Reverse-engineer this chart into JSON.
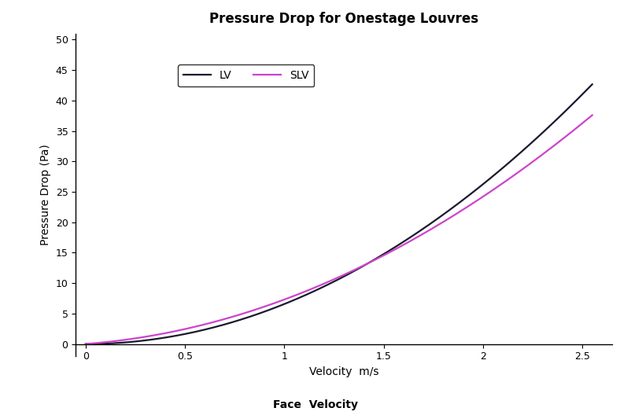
{
  "title": "Pressure Drop for Onestage Louvres",
  "xlabel": "Velocity  m/s",
  "xlabel2": "Face  Velocity",
  "ylabel": "Pressure Drop (Pa)",
  "xlim": [
    -0.05,
    2.65
  ],
  "ylim": [
    -2,
    51
  ],
  "yticks": [
    0,
    5,
    10,
    15,
    20,
    25,
    30,
    35,
    40,
    45,
    50
  ],
  "xticks": [
    0,
    0.5,
    1.0,
    1.5,
    2.0,
    2.5
  ],
  "lv_coeff": 6.56,
  "lv_power": 2.0,
  "slv_coeff": 4.8,
  "slv_linear": 2.5,
  "slv_power": 2.0,
  "lv_color": "#1a1a2e",
  "slv_color": "#cc44cc",
  "lv_label": "LV",
  "slv_label": "SLV",
  "linewidth": 1.6,
  "background_color": "#ffffff",
  "legend_fontsize": 10,
  "title_fontsize": 12,
  "label_fontsize": 10,
  "tick_fontsize": 9
}
